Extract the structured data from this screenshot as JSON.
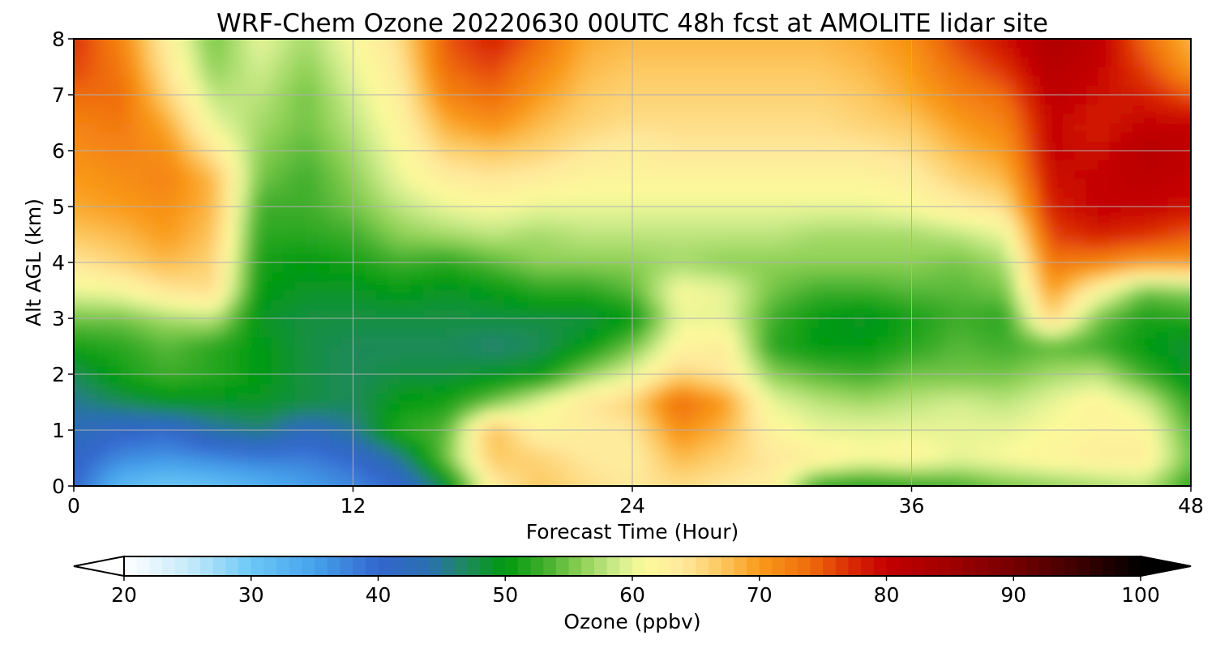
{
  "chart_data": {
    "type": "heatmap",
    "title": "WRF-Chem Ozone  20220630 00UTC 48h fcst at AMOLITE lidar site",
    "xlabel": "Forecast Time (Hour)",
    "ylabel": "Alt AGL (km)",
    "xlim": [
      0,
      48
    ],
    "ylim": [
      0,
      8
    ],
    "xticks": [
      0,
      12,
      24,
      36,
      48
    ],
    "yticks": [
      0,
      1,
      2,
      3,
      4,
      5,
      6,
      7,
      8
    ],
    "grid": true,
    "x_hours": [
      0,
      2,
      4,
      6,
      8,
      10,
      12,
      14,
      16,
      18,
      20,
      22,
      24,
      26,
      28,
      30,
      32,
      34,
      36,
      38,
      40,
      42,
      44,
      46,
      48
    ],
    "altitudes_km": [
      0,
      0.5,
      1,
      1.5,
      2,
      2.5,
      3,
      3.5,
      4,
      4.5,
      5,
      5.5,
      6,
      6.5,
      7,
      7.5,
      8
    ],
    "ozone_ppbv": [
      [
        40,
        32,
        30,
        31,
        33,
        35,
        37,
        40,
        48,
        63,
        67,
        65,
        64,
        65,
        64,
        63,
        52,
        51,
        52,
        53,
        55,
        56,
        57,
        58,
        52
      ],
      [
        41,
        37,
        36,
        37,
        38,
        38,
        40,
        45,
        55,
        67,
        66,
        64,
        63,
        68,
        66,
        64,
        63,
        61,
        62,
        60,
        61,
        62,
        63,
        63,
        55
      ],
      [
        43,
        41,
        40,
        44,
        46,
        42,
        45,
        52,
        54,
        68,
        62,
        63,
        64,
        71,
        68,
        62,
        60,
        60,
        60,
        60,
        60,
        61,
        62,
        62,
        54
      ],
      [
        45,
        47,
        49,
        49,
        49,
        48,
        47,
        50,
        51,
        55,
        60,
        64,
        66,
        74,
        70,
        60,
        58,
        57,
        58,
        59,
        58,
        60,
        62,
        59,
        52
      ],
      [
        47,
        51,
        53,
        52,
        50,
        48,
        47,
        48,
        48,
        49,
        50,
        56,
        60,
        66,
        64,
        56,
        54,
        53,
        55,
        55,
        55,
        57,
        58,
        53,
        49
      ],
      [
        51,
        52,
        54,
        52,
        50,
        48,
        47,
        47,
        47,
        46,
        47,
        50,
        55,
        62,
        63,
        52,
        50,
        50,
        52,
        54,
        53,
        54,
        53,
        50,
        48
      ],
      [
        55,
        55,
        57,
        58,
        49,
        48,
        48,
        48,
        48,
        48,
        48,
        48,
        50,
        60,
        60,
        53,
        50,
        49,
        51,
        53,
        52,
        66,
        55,
        51,
        52
      ],
      [
        60,
        61,
        64,
        65,
        50,
        49,
        49,
        50,
        49,
        50,
        52,
        52,
        54,
        61,
        60,
        55,
        53,
        53,
        54,
        54,
        55,
        70,
        62,
        55,
        56
      ],
      [
        64,
        66,
        68,
        66,
        51,
        50,
        51,
        53,
        52,
        54,
        56,
        56,
        56,
        57,
        56,
        56,
        56,
        56,
        56,
        55,
        57,
        73,
        72,
        70,
        70
      ],
      [
        67,
        68,
        70,
        67,
        52,
        52,
        53,
        56,
        57,
        58,
        57,
        58,
        58,
        58,
        58,
        58,
        57,
        57,
        57,
        58,
        60,
        76,
        78,
        77,
        75
      ],
      [
        69,
        70,
        71,
        68,
        53,
        53,
        55,
        58,
        60,
        61,
        60,
        60,
        60,
        60,
        60,
        60,
        60,
        60,
        61,
        63,
        65,
        78,
        80,
        80,
        79
      ],
      [
        70,
        71,
        72,
        68,
        55,
        53,
        56,
        60,
        63,
        64,
        63,
        62,
        62,
        62,
        62,
        62,
        62,
        62,
        63,
        66,
        68,
        79,
        80,
        81,
        80
      ],
      [
        71,
        72,
        71,
        64,
        56,
        54,
        57,
        61,
        66,
        67,
        66,
        64,
        63,
        64,
        64,
        64,
        64,
        64,
        65,
        68,
        70,
        80,
        79,
        82,
        81
      ],
      [
        72,
        73,
        69,
        60,
        57,
        55,
        58,
        62,
        69,
        71,
        68,
        66,
        65,
        65,
        65,
        65,
        65,
        66,
        67,
        70,
        72,
        80,
        78,
        80,
        80
      ],
      [
        74,
        74,
        66,
        58,
        58,
        55,
        59,
        63,
        72,
        74,
        70,
        67,
        66,
        66,
        66,
        66,
        66,
        67,
        69,
        72,
        74,
        81,
        79,
        78,
        75
      ],
      [
        76,
        73,
        64,
        56,
        59,
        56,
        60,
        64,
        74,
        76,
        72,
        68,
        67,
        67,
        67,
        67,
        67,
        68,
        70,
        74,
        77,
        82,
        80,
        76,
        70
      ],
      [
        77,
        72,
        63,
        55,
        60,
        57,
        61,
        65,
        75,
        78,
        74,
        69,
        68,
        68,
        68,
        68,
        68,
        69,
        71,
        76,
        79,
        83,
        81,
        74,
        68
      ]
    ],
    "colorbar": {
      "label": "Ozone  (ppbv)",
      "min": 20,
      "max": 100,
      "ticks": [
        20,
        30,
        40,
        50,
        60,
        70,
        80,
        90,
        100
      ],
      "extend": "both",
      "placement": "bottom",
      "color_stops": [
        {
          "v": 20,
          "c": "#ffffff"
        },
        {
          "v": 25,
          "c": "#c8ebfa"
        },
        {
          "v": 30,
          "c": "#6cc8f5"
        },
        {
          "v": 35,
          "c": "#46a2ec"
        },
        {
          "v": 40,
          "c": "#3366cc"
        },
        {
          "v": 44,
          "c": "#2a6fb0"
        },
        {
          "v": 47,
          "c": "#1e8a5a"
        },
        {
          "v": 50,
          "c": "#009a10"
        },
        {
          "v": 53,
          "c": "#3ead2a"
        },
        {
          "v": 56,
          "c": "#8dd055"
        },
        {
          "v": 59,
          "c": "#d4ee90"
        },
        {
          "v": 61,
          "c": "#fcfa9a"
        },
        {
          "v": 64,
          "c": "#fee89c"
        },
        {
          "v": 67,
          "c": "#fdc860"
        },
        {
          "v": 70,
          "c": "#f99a1a"
        },
        {
          "v": 74,
          "c": "#ef6c0c"
        },
        {
          "v": 77,
          "c": "#dc2e06"
        },
        {
          "v": 80,
          "c": "#c40000"
        },
        {
          "v": 85,
          "c": "#a00000"
        },
        {
          "v": 90,
          "c": "#760000"
        },
        {
          "v": 95,
          "c": "#3e0000"
        },
        {
          "v": 100,
          "c": "#000000"
        }
      ]
    }
  }
}
